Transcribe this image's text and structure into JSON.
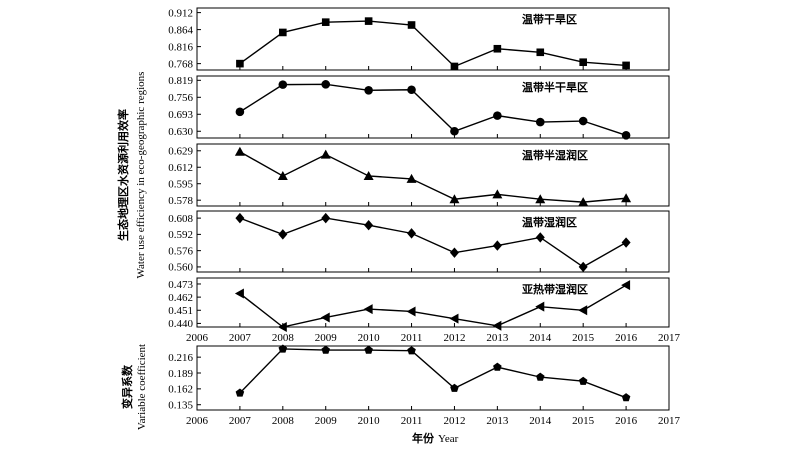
{
  "chart_data": {
    "type": "line",
    "xlabel_cn": "年份",
    "xlabel_en": "Year",
    "xlim": [
      2006,
      2017
    ],
    "xticks": [
      2006,
      2007,
      2008,
      2009,
      2010,
      2011,
      2012,
      2013,
      2014,
      2015,
      2016,
      2017
    ],
    "ylabel_cn": "生态地理区水资源利用效率",
    "ylabel_en": "Water use efficiency in eco-geographic regions",
    "ylabel2_cn": "变异系数",
    "ylabel2_en": "Variable coefficient",
    "x": [
      2007,
      2008,
      2009,
      2010,
      2011,
      2012,
      2013,
      2014,
      2015,
      2016
    ],
    "panels": [
      {
        "label": "温带干旱区",
        "marker": "square",
        "yticks": [
          "0.912",
          "0.864",
          "0.816",
          "0.768"
        ],
        "ylim": [
          0.75,
          0.925
        ],
        "values": [
          0.768,
          0.856,
          0.885,
          0.888,
          0.877,
          0.76,
          0.81,
          0.8,
          0.772,
          0.763
        ]
      },
      {
        "label": "温带半干旱区",
        "marker": "circle",
        "yticks": [
          "0.819",
          "0.756",
          "0.693",
          "0.630"
        ],
        "ylim": [
          0.605,
          0.835
        ],
        "values": [
          0.702,
          0.803,
          0.804,
          0.782,
          0.784,
          0.63,
          0.688,
          0.664,
          0.668,
          0.615
        ]
      },
      {
        "label": "温带半湿润区",
        "marker": "triangle-up",
        "yticks": [
          "0.629",
          "0.612",
          "0.595",
          "0.578"
        ],
        "ylim": [
          0.572,
          0.636
        ],
        "values": [
          0.628,
          0.603,
          0.625,
          0.603,
          0.6,
          0.579,
          0.584,
          0.579,
          0.576,
          0.58
        ]
      },
      {
        "label": "温带湿润区",
        "marker": "diamond",
        "yticks": [
          "0.608",
          "0.592",
          "0.576",
          "0.560"
        ],
        "ylim": [
          0.555,
          0.615
        ],
        "values": [
          0.608,
          0.592,
          0.608,
          0.601,
          0.593,
          0.574,
          0.581,
          0.589,
          0.56,
          0.584
        ]
      },
      {
        "label": "亚热带湿润区",
        "marker": "triangle-left",
        "yticks": [
          "0.473",
          "0.462",
          "0.451",
          "0.440"
        ],
        "ylim": [
          0.437,
          0.478
        ],
        "values": [
          0.465,
          0.437,
          0.445,
          0.452,
          0.45,
          0.444,
          0.438,
          0.454,
          0.451,
          0.472
        ]
      },
      {
        "label": "",
        "marker": "pentagon",
        "yticks": [
          "0.216",
          "0.189",
          "0.162",
          "0.135"
        ],
        "ylim": [
          0.126,
          0.235
        ],
        "values": [
          0.155,
          0.23,
          0.228,
          0.228,
          0.227,
          0.163,
          0.199,
          0.182,
          0.175,
          0.147
        ]
      }
    ]
  }
}
